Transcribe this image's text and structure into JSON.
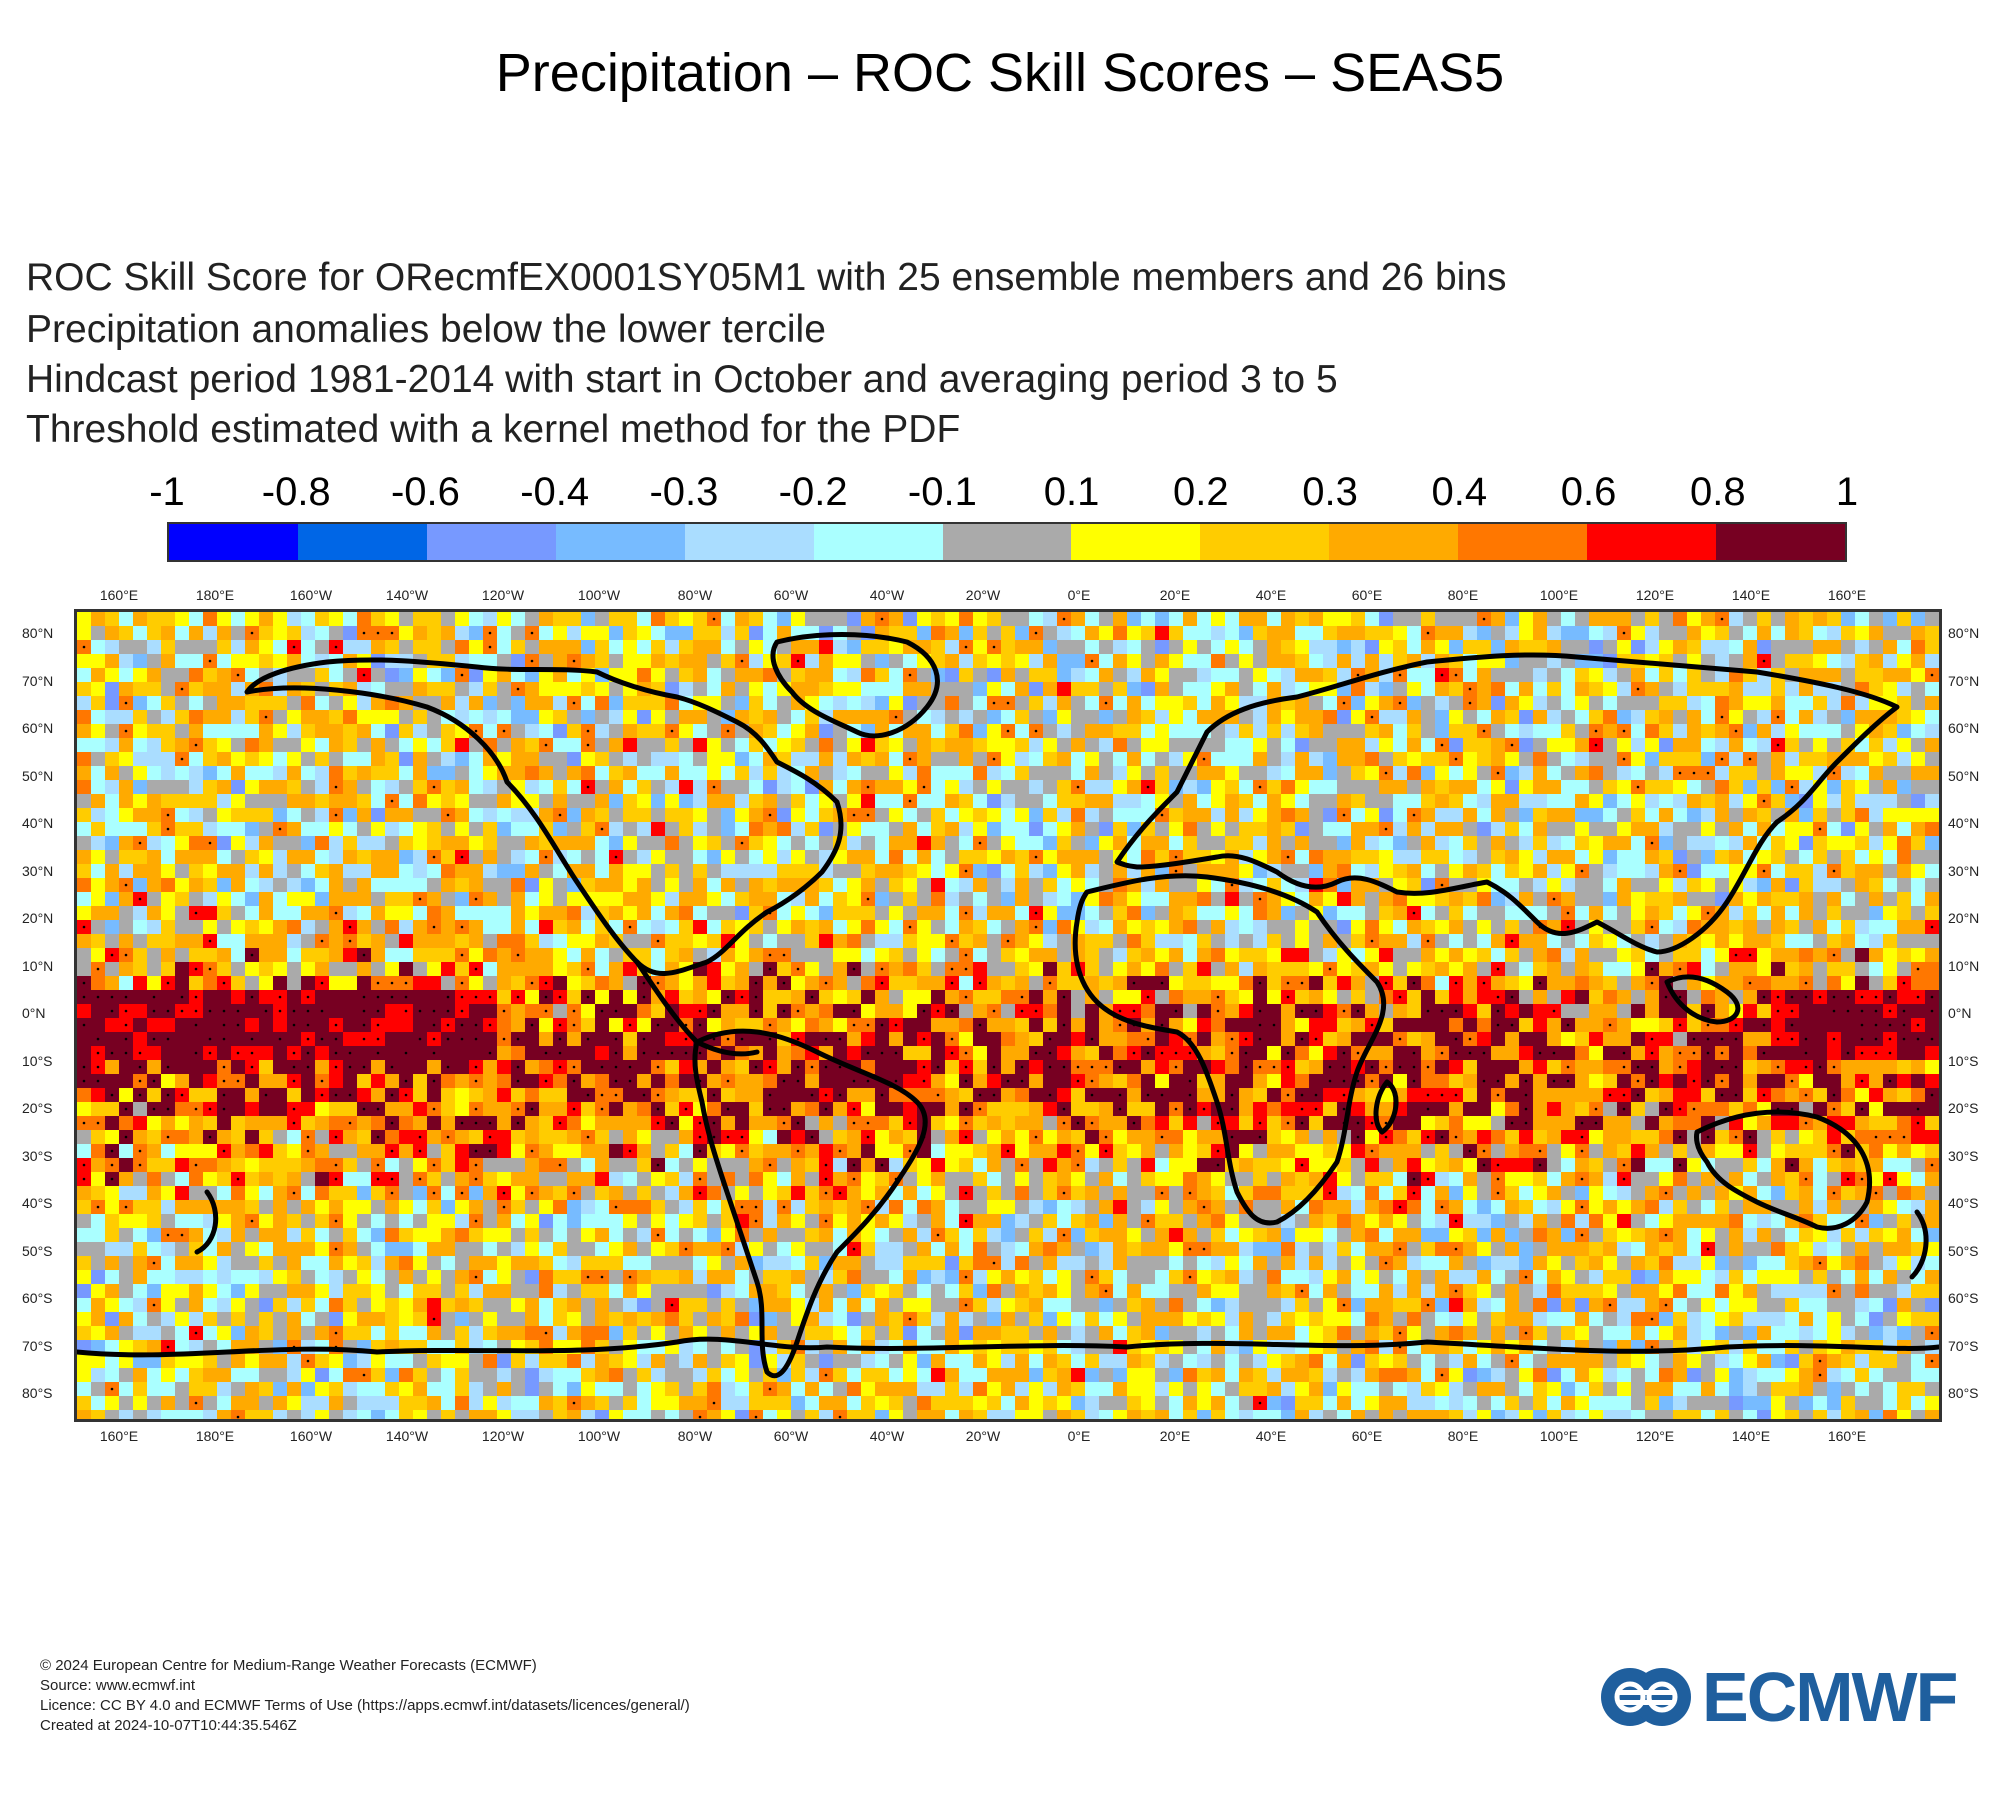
{
  "title": "Precipitation – ROC Skill Scores – SEAS5",
  "subtitle_lines": [
    "ROC Skill Score for ORecmfEX0001SY05M1 with 25 ensemble members and 26 bins",
    "Precipitation anomalies below the lower tercile",
    "Hindcast period 1981-2014 with start in October and averaging period  3 to  5",
    "Threshold estimated with a kernel method for the PDF"
  ],
  "colorbar": {
    "labels": [
      "-1",
      "-0.8",
      "-0.6",
      "-0.4",
      "-0.3",
      "-0.2",
      "-0.1",
      "0.1",
      "0.2",
      "0.3",
      "0.4",
      "0.6",
      "0.8",
      "1"
    ],
    "colors": [
      "#0000ff",
      "#0066e6",
      "#7799ff",
      "#77bbff",
      "#aaddff",
      "#aaffff",
      "#aaaaaa",
      "#ffff00",
      "#ffcc00",
      "#ffaa00",
      "#ff7700",
      "#ff0000",
      "#770022"
    ]
  },
  "lon_labels": [
    "160°E",
    "180°E",
    "160°W",
    "140°W",
    "120°W",
    "100°W",
    "80°W",
    "60°W",
    "40°W",
    "20°W",
    "0°E",
    "20°E",
    "40°E",
    "60°E",
    "80°E",
    "100°E",
    "120°E",
    "140°E",
    "160°E"
  ],
  "lat_labels": [
    "80°N",
    "70°N",
    "60°N",
    "50°N",
    "40°N",
    "30°N",
    "20°N",
    "10°N",
    "0°N",
    "10°S",
    "20°S",
    "30°S",
    "40°S",
    "50°S",
    "60°S",
    "70°S",
    "80°S"
  ],
  "footer_lines": [
    "© 2024 European Centre for Medium-Range Weather Forecasts (ECMWF)",
    "Source: www.ecmwf.int",
    "Licence: CC BY 4.0 and ECMWF Terms of Use (https://apps.ecmwf.int/datasets/licences/general/)",
    "Created at 2024-10-07T10:44:35.546Z"
  ],
  "logo_text": "ECMWF",
  "logo_color": "#1f5f9e"
}
